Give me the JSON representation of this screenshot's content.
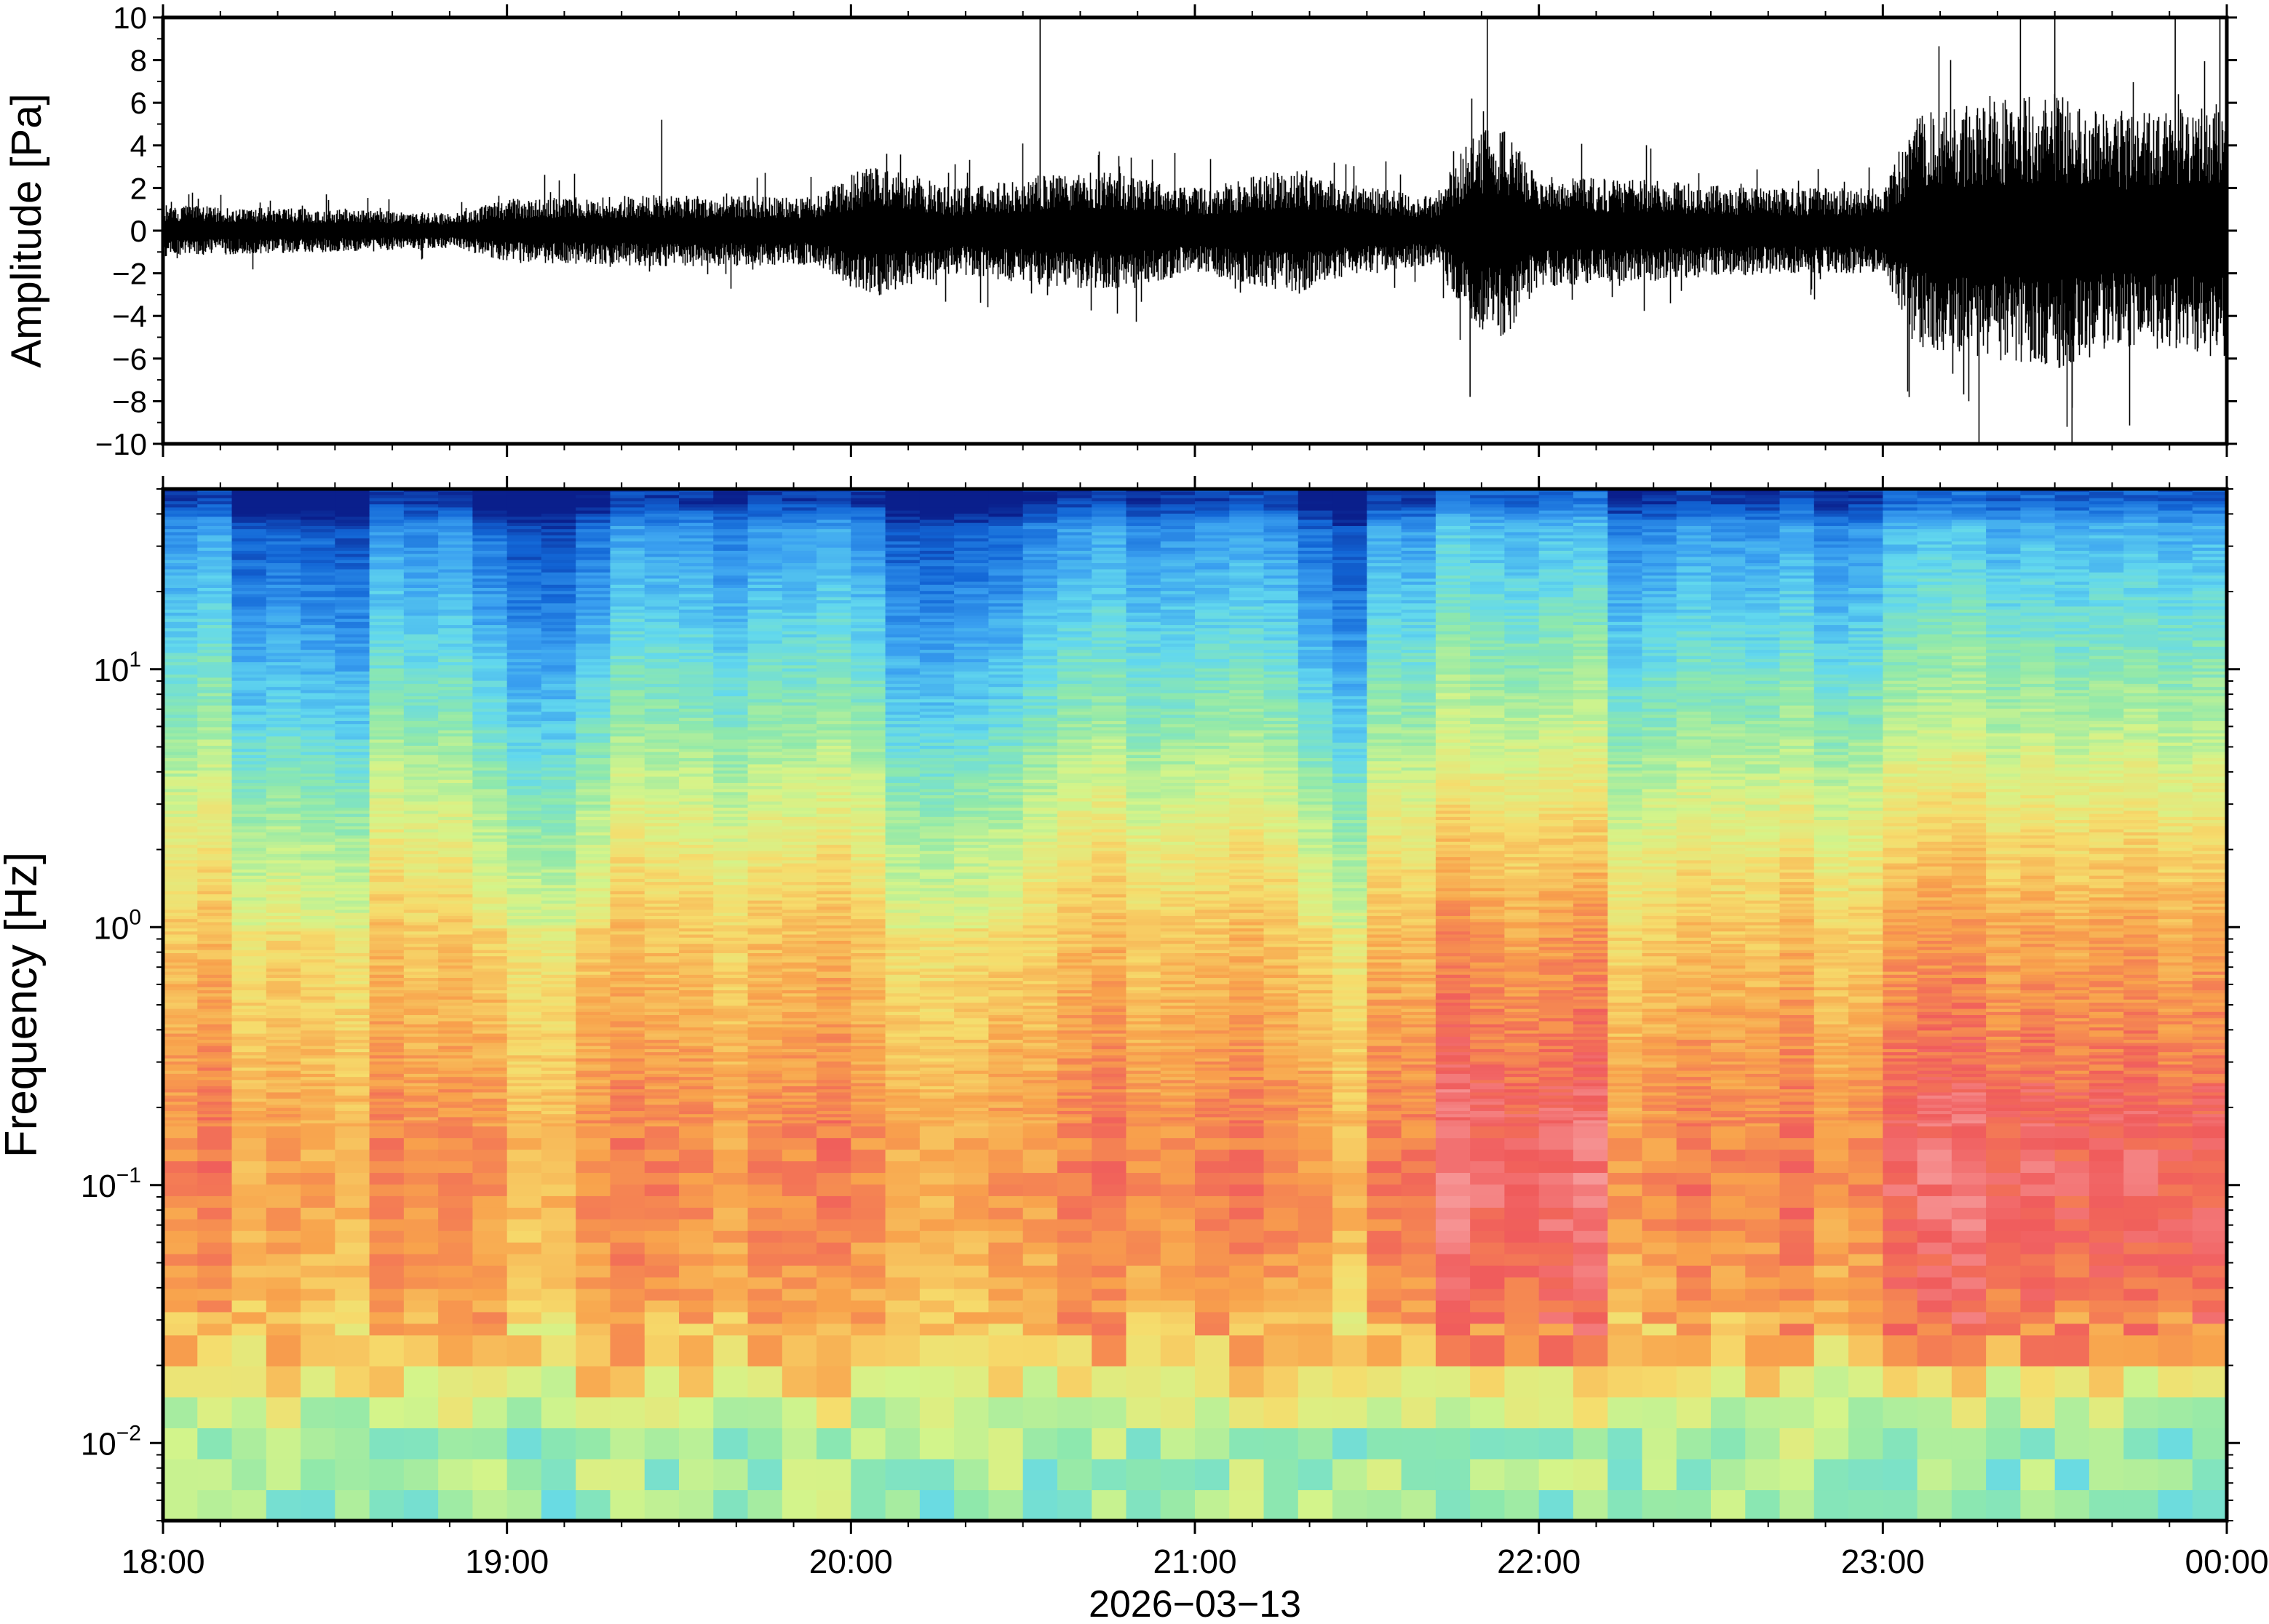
{
  "chart_data": [
    {
      "type": "line",
      "panel": "waveform",
      "title": "",
      "xlabel": "",
      "ylabel": "Amplitude [Pa]",
      "ylim": [
        -10,
        10
      ],
      "yticks": [
        -10,
        -8,
        -6,
        -4,
        -2,
        0,
        2,
        4,
        6,
        8,
        10
      ],
      "ytick_labels": [
        "−10",
        "−8",
        "−6",
        "−4",
        "−2",
        "0",
        "2",
        "4",
        "6",
        "8",
        "10"
      ],
      "x_hours": [
        18,
        24
      ],
      "line_color": "#000000",
      "envelope": {
        "hour": [
          18.0,
          18.5,
          18.85,
          19.0,
          19.5,
          19.9,
          20.05,
          20.3,
          20.55,
          20.75,
          21.0,
          21.3,
          21.4,
          21.7,
          21.8,
          21.9,
          22.0,
          22.3,
          22.7,
          23.0,
          23.1,
          23.3,
          23.5,
          23.7,
          24.0
        ],
        "amplitude": [
          1.2,
          1.0,
          0.8,
          1.5,
          1.7,
          1.6,
          3.2,
          2.0,
          2.6,
          2.8,
          2.0,
          3.0,
          2.3,
          1.6,
          4.5,
          5.0,
          2.6,
          2.4,
          2.0,
          2.0,
          5.5,
          6.0,
          6.5,
          5.5,
          6.0
        ]
      },
      "spikes": [
        {
          "hour": 19.45,
          "value": 5.2
        },
        {
          "hour": 20.55,
          "value": 10.0
        },
        {
          "hour": 21.8,
          "value": -7.8
        },
        {
          "hour": 21.85,
          "value": 10.0
        },
        {
          "hour": 23.25,
          "value": -8.0
        },
        {
          "hour": 23.4,
          "value": 10.0
        },
        {
          "hour": 23.5,
          "value": 10.0
        },
        {
          "hour": 23.55,
          "value": -10.0
        },
        {
          "hour": 23.85,
          "value": 10.0
        },
        {
          "hour": 23.98,
          "value": 10.0
        }
      ]
    },
    {
      "type": "heatmap",
      "panel": "spectrogram",
      "title": "",
      "ylabel": "Frequency [Hz]",
      "xlabel": "2026−03−13",
      "y_scale": "log",
      "ylim": [
        0.005,
        50
      ],
      "yticks": [
        0.01,
        0.1,
        1,
        10
      ],
      "ytick_labels": [
        {
          "base": "10",
          "exp": "−2"
        },
        {
          "base": "10",
          "exp": "−1"
        },
        {
          "base": "10",
          "exp": "0"
        },
        {
          "base": "10",
          "exp": "1"
        }
      ],
      "x_hours": [
        18,
        24
      ],
      "xticks": [
        18,
        19,
        20,
        21,
        22,
        23,
        24
      ],
      "xtick_labels": [
        "18:00",
        "19:00",
        "20:00",
        "21:00",
        "22:00",
        "23:00",
        "00:00"
      ],
      "time_bins": 60,
      "colormap": [
        "#0a1f8c",
        "#1266d6",
        "#3aa0f0",
        "#62d8ee",
        "#8ee8ac",
        "#d4f48a",
        "#f6dc6c",
        "#f8a24c",
        "#f05c5c",
        "#f8a8a8"
      ],
      "spectrum_profile": {
        "log10_freq": [
          -2.3,
          -2.0,
          -1.7,
          -1.5,
          -1.2,
          -1.0,
          -0.7,
          -0.4,
          0.0,
          0.3,
          0.6,
          0.8,
          1.0,
          1.3,
          1.55,
          1.65
        ],
        "level": [
          0.45,
          0.48,
          0.68,
          0.76,
          0.8,
          0.82,
          0.8,
          0.76,
          0.7,
          0.62,
          0.52,
          0.44,
          0.38,
          0.28,
          0.2,
          0.04
        ]
      },
      "quiet_periods_hours": [
        [
          18.2,
          18.55
        ],
        [
          18.9,
          19.3
        ],
        [
          20.15,
          20.5
        ],
        [
          21.3,
          21.5
        ]
      ],
      "loud_periods_hours": [
        [
          21.7,
          22.2
        ],
        [
          23.0,
          24.0
        ]
      ]
    }
  ]
}
